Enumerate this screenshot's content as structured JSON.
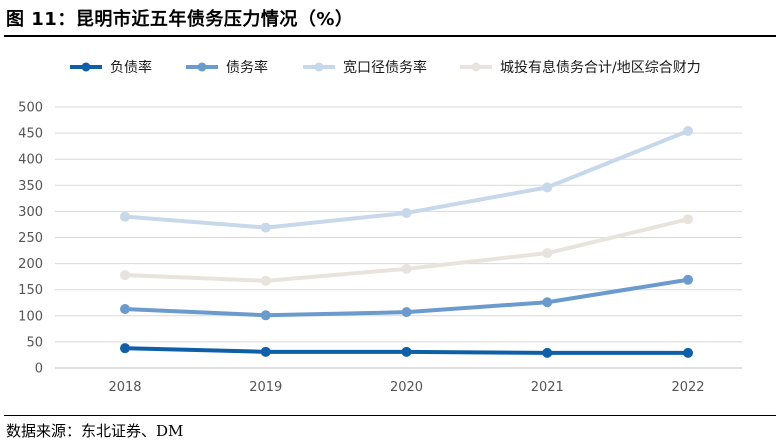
{
  "figure": {
    "title": "图 11：昆明市近五年债务压力情况（%）",
    "source": "数据来源：东北证券、DM"
  },
  "chart_data": {
    "type": "line",
    "categories": [
      "2018",
      "2019",
      "2020",
      "2021",
      "2022"
    ],
    "ylim": [
      0,
      500
    ],
    "yticks": [
      0,
      50,
      100,
      150,
      200,
      250,
      300,
      350,
      400,
      450,
      500
    ],
    "grid": true,
    "legend_position": "top",
    "series": [
      {
        "name": "负债率",
        "color": "#0f5fa8",
        "values": [
          38,
          31,
          31,
          29,
          29
        ]
      },
      {
        "name": "债务率",
        "color": "#6b9bcc",
        "values": [
          113,
          101,
          107,
          126,
          169
        ]
      },
      {
        "name": "宽口径债务率",
        "color": "#c7d8eb",
        "values": [
          290,
          269,
          297,
          346,
          454
        ]
      },
      {
        "name": "城投有息债务合计/地区综合财力",
        "color": "#e8e4dd",
        "values": [
          178,
          167,
          190,
          220,
          285
        ]
      }
    ]
  }
}
